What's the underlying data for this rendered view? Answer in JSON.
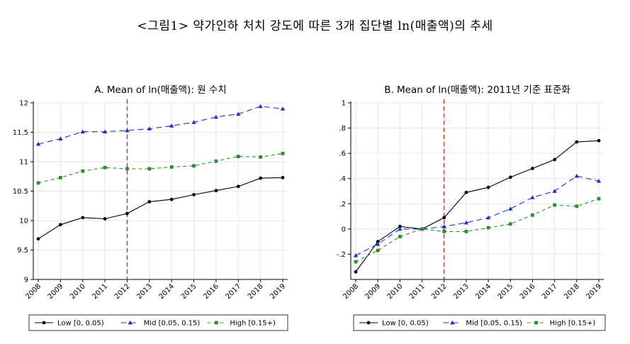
{
  "figure_title": "<그림1> 약가인하 처치 강도에 따른 3개 집단별 ln(매출액)의 추세",
  "colors": {
    "low": "#000000",
    "mid": "#1f2fbf",
    "high": "#2e8b2e",
    "ref_line": "#c62828",
    "grid": "#e6e6e6"
  },
  "chart_data": [
    {
      "type": "line",
      "title": "A. Mean of ln(매출액): 원 수치",
      "x": [
        2008,
        2009,
        2010,
        2011,
        2012,
        2013,
        2014,
        2015,
        2016,
        2017,
        2018,
        2019
      ],
      "x_tick_labels": [
        "2008",
        "2009",
        "2010",
        "2011",
        "2012",
        "2013",
        "2014",
        "2015",
        "2016",
        "2017",
        "2018",
        "2019"
      ],
      "ylim": [
        9,
        12
      ],
      "y_ticks": [
        9,
        9.5,
        10,
        10.5,
        11,
        11.5,
        12
      ],
      "y_tick_labels": [
        "9",
        "9.5",
        "10",
        "10.5",
        "11",
        "11.5",
        "12"
      ],
      "reference_line_x": 2012,
      "grid": true,
      "legend_position": "bottom",
      "series": [
        {
          "key": "low",
          "name": "Low [0, 0.05)",
          "values": [
            9.69,
            9.93,
            10.05,
            10.03,
            10.12,
            10.32,
            10.36,
            10.44,
            10.51,
            10.58,
            10.72,
            10.73
          ]
        },
        {
          "key": "mid",
          "name": "Mid [0.05, 0.15)",
          "values": [
            11.3,
            11.39,
            11.51,
            11.51,
            11.53,
            11.56,
            11.61,
            11.67,
            11.76,
            11.81,
            11.94,
            11.9
          ]
        },
        {
          "key": "high",
          "name": "High [0.15+)",
          "values": [
            10.64,
            10.73,
            10.84,
            10.9,
            10.88,
            10.88,
            10.91,
            10.93,
            11.01,
            11.09,
            11.08,
            11.14
          ]
        }
      ]
    },
    {
      "type": "line",
      "title": "B. Mean of ln(매출액): 2011년 기준 표준화",
      "x": [
        2008,
        2009,
        2010,
        2011,
        2012,
        2013,
        2014,
        2015,
        2016,
        2017,
        2018,
        2019
      ],
      "x_tick_labels": [
        "2008",
        "2009",
        "2010",
        "2011",
        "2012",
        "2013",
        "2014",
        "2015",
        "2016",
        "2017",
        "2018",
        "2019"
      ],
      "ylim": [
        -0.4,
        1
      ],
      "y_ticks": [
        -0.2,
        0,
        0.2,
        0.4,
        0.6,
        0.8,
        1
      ],
      "y_tick_labels": [
        "-.2",
        "0",
        ".2",
        ".4",
        ".6",
        ".8",
        "1"
      ],
      "reference_line_x": 2012,
      "grid": true,
      "legend_position": "bottom",
      "series": [
        {
          "key": "low",
          "name": "Low [0, 0.05)",
          "values": [
            -0.34,
            -0.1,
            0.02,
            0.0,
            0.09,
            0.29,
            0.33,
            0.41,
            0.48,
            0.55,
            0.69,
            0.7
          ]
        },
        {
          "key": "mid",
          "name": "Mid [0.05, 0.15)",
          "values": [
            -0.21,
            -0.12,
            0.0,
            0.0,
            0.02,
            0.05,
            0.09,
            0.16,
            0.25,
            0.3,
            0.42,
            0.38
          ]
        },
        {
          "key": "high",
          "name": "High [0.15+)",
          "values": [
            -0.26,
            -0.17,
            -0.06,
            0.0,
            -0.02,
            -0.02,
            0.01,
            0.04,
            0.11,
            0.19,
            0.18,
            0.24
          ]
        }
      ]
    }
  ]
}
